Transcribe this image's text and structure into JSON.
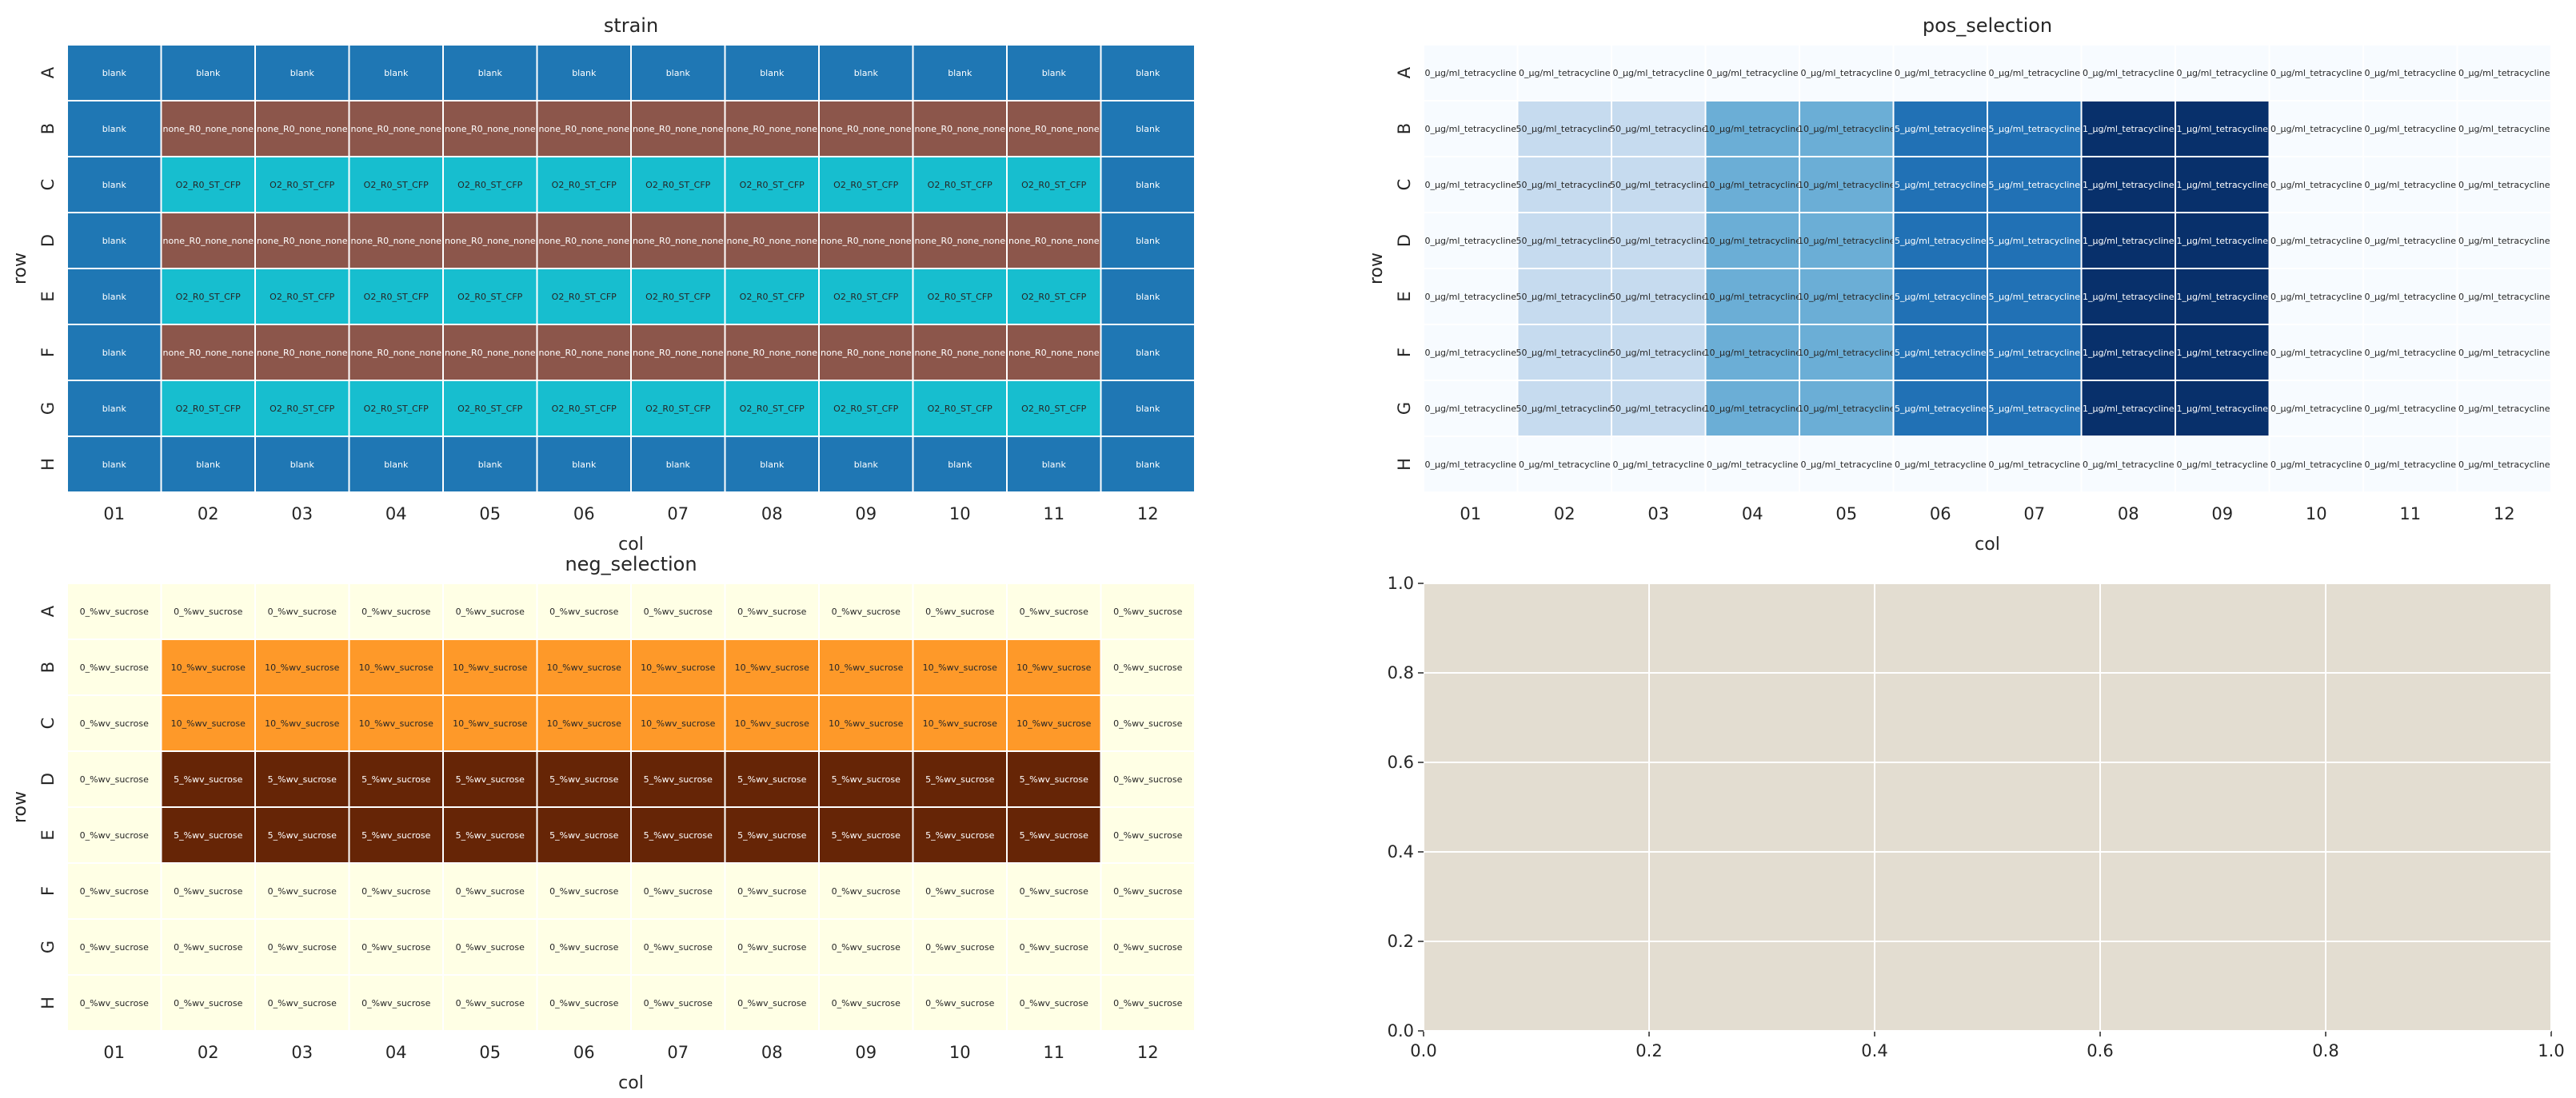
{
  "chart_data": [
    {
      "type": "heatmap",
      "title": "strain",
      "xlabel": "col",
      "ylabel": "row",
      "x_tick_labels": [
        "01",
        "02",
        "03",
        "04",
        "05",
        "06",
        "07",
        "08",
        "09",
        "10",
        "11",
        "12"
      ],
      "y_tick_labels": [
        "A",
        "B",
        "C",
        "D",
        "E",
        "F",
        "G",
        "H"
      ],
      "categories_colors": {
        "blank": "#1f77b4",
        "none_R0_none_none": "#8c564b",
        "O2_R0_ST_CFP": "#17becf"
      },
      "cells": [
        [
          "blank",
          "blank",
          "blank",
          "blank",
          "blank",
          "blank",
          "blank",
          "blank",
          "blank",
          "blank",
          "blank",
          "blank"
        ],
        [
          "blank",
          "none_R0_none_none",
          "none_R0_none_none",
          "none_R0_none_none",
          "none_R0_none_none",
          "none_R0_none_none",
          "none_R0_none_none",
          "none_R0_none_none",
          "none_R0_none_none",
          "none_R0_none_none",
          "none_R0_none_none",
          "blank"
        ],
        [
          "blank",
          "O2_R0_ST_CFP",
          "O2_R0_ST_CFP",
          "O2_R0_ST_CFP",
          "O2_R0_ST_CFP",
          "O2_R0_ST_CFP",
          "O2_R0_ST_CFP",
          "O2_R0_ST_CFP",
          "O2_R0_ST_CFP",
          "O2_R0_ST_CFP",
          "O2_R0_ST_CFP",
          "blank"
        ],
        [
          "blank",
          "none_R0_none_none",
          "none_R0_none_none",
          "none_R0_none_none",
          "none_R0_none_none",
          "none_R0_none_none",
          "none_R0_none_none",
          "none_R0_none_none",
          "none_R0_none_none",
          "none_R0_none_none",
          "none_R0_none_none",
          "blank"
        ],
        [
          "blank",
          "O2_R0_ST_CFP",
          "O2_R0_ST_CFP",
          "O2_R0_ST_CFP",
          "O2_R0_ST_CFP",
          "O2_R0_ST_CFP",
          "O2_R0_ST_CFP",
          "O2_R0_ST_CFP",
          "O2_R0_ST_CFP",
          "O2_R0_ST_CFP",
          "O2_R0_ST_CFP",
          "blank"
        ],
        [
          "blank",
          "none_R0_none_none",
          "none_R0_none_none",
          "none_R0_none_none",
          "none_R0_none_none",
          "none_R0_none_none",
          "none_R0_none_none",
          "none_R0_none_none",
          "none_R0_none_none",
          "none_R0_none_none",
          "none_R0_none_none",
          "blank"
        ],
        [
          "blank",
          "O2_R0_ST_CFP",
          "O2_R0_ST_CFP",
          "O2_R0_ST_CFP",
          "O2_R0_ST_CFP",
          "O2_R0_ST_CFP",
          "O2_R0_ST_CFP",
          "O2_R0_ST_CFP",
          "O2_R0_ST_CFP",
          "O2_R0_ST_CFP",
          "O2_R0_ST_CFP",
          "blank"
        ],
        [
          "blank",
          "blank",
          "blank",
          "blank",
          "blank",
          "blank",
          "blank",
          "blank",
          "blank",
          "blank",
          "blank",
          "blank"
        ]
      ]
    },
    {
      "type": "heatmap",
      "title": "pos_selection",
      "xlabel": "col",
      "ylabel": "row",
      "x_tick_labels": [
        "01",
        "02",
        "03",
        "04",
        "05",
        "06",
        "07",
        "08",
        "09",
        "10",
        "11",
        "12"
      ],
      "y_tick_labels": [
        "A",
        "B",
        "C",
        "D",
        "E",
        "F",
        "G",
        "H"
      ],
      "categories_colors": {
        "0_μg/ml_tetracycline": "#f7fbff",
        "50_μg/ml_tetracycline": "#c6dbef",
        "10_μg/ml_tetracycline": "#6baed6",
        "5_μg/ml_tetracycline": "#2171b5",
        "1_μg/ml_tetracycline": "#08306b"
      },
      "text_colors": {
        "light": "#ffffff",
        "dark": "#262626"
      },
      "cells": [
        [
          "0_μg/ml_tetracycline",
          "0_μg/ml_tetracycline",
          "0_μg/ml_tetracycline",
          "0_μg/ml_tetracycline",
          "0_μg/ml_tetracycline",
          "0_μg/ml_tetracycline",
          "0_μg/ml_tetracycline",
          "0_μg/ml_tetracycline",
          "0_μg/ml_tetracycline",
          "0_μg/ml_tetracycline",
          "0_μg/ml_tetracycline",
          "0_μg/ml_tetracycline"
        ],
        [
          "0_μg/ml_tetracycline",
          "50_μg/ml_tetracycline",
          "50_μg/ml_tetracycline",
          "10_μg/ml_tetracycline",
          "10_μg/ml_tetracycline",
          "5_μg/ml_tetracycline",
          "5_μg/ml_tetracycline",
          "1_μg/ml_tetracycline",
          "1_μg/ml_tetracycline",
          "0_μg/ml_tetracycline",
          "0_μg/ml_tetracycline",
          "0_μg/ml_tetracycline"
        ],
        [
          "0_μg/ml_tetracycline",
          "50_μg/ml_tetracycline",
          "50_μg/ml_tetracycline",
          "10_μg/ml_tetracycline",
          "10_μg/ml_tetracycline",
          "5_μg/ml_tetracycline",
          "5_μg/ml_tetracycline",
          "1_μg/ml_tetracycline",
          "1_μg/ml_tetracycline",
          "0_μg/ml_tetracycline",
          "0_μg/ml_tetracycline",
          "0_μg/ml_tetracycline"
        ],
        [
          "0_μg/ml_tetracycline",
          "50_μg/ml_tetracycline",
          "50_μg/ml_tetracycline",
          "10_μg/ml_tetracycline",
          "10_μg/ml_tetracycline",
          "5_μg/ml_tetracycline",
          "5_μg/ml_tetracycline",
          "1_μg/ml_tetracycline",
          "1_μg/ml_tetracycline",
          "0_μg/ml_tetracycline",
          "0_μg/ml_tetracycline",
          "0_μg/ml_tetracycline"
        ],
        [
          "0_μg/ml_tetracycline",
          "50_μg/ml_tetracycline",
          "50_μg/ml_tetracycline",
          "10_μg/ml_tetracycline",
          "10_μg/ml_tetracycline",
          "5_μg/ml_tetracycline",
          "5_μg/ml_tetracycline",
          "1_μg/ml_tetracycline",
          "1_μg/ml_tetracycline",
          "0_μg/ml_tetracycline",
          "0_μg/ml_tetracycline",
          "0_μg/ml_tetracycline"
        ],
        [
          "0_μg/ml_tetracycline",
          "50_μg/ml_tetracycline",
          "50_μg/ml_tetracycline",
          "10_μg/ml_tetracycline",
          "10_μg/ml_tetracycline",
          "5_μg/ml_tetracycline",
          "5_μg/ml_tetracycline",
          "1_μg/ml_tetracycline",
          "1_μg/ml_tetracycline",
          "0_μg/ml_tetracycline",
          "0_μg/ml_tetracycline",
          "0_μg/ml_tetracycline"
        ],
        [
          "0_μg/ml_tetracycline",
          "50_μg/ml_tetracycline",
          "50_μg/ml_tetracycline",
          "10_μg/ml_tetracycline",
          "10_μg/ml_tetracycline",
          "5_μg/ml_tetracycline",
          "5_μg/ml_tetracycline",
          "1_μg/ml_tetracycline",
          "1_μg/ml_tetracycline",
          "0_μg/ml_tetracycline",
          "0_μg/ml_tetracycline",
          "0_μg/ml_tetracycline"
        ],
        [
          "0_μg/ml_tetracycline",
          "0_μg/ml_tetracycline",
          "0_μg/ml_tetracycline",
          "0_μg/ml_tetracycline",
          "0_μg/ml_tetracycline",
          "0_μg/ml_tetracycline",
          "0_μg/ml_tetracycline",
          "0_μg/ml_tetracycline",
          "0_μg/ml_tetracycline",
          "0_μg/ml_tetracycline",
          "0_μg/ml_tetracycline",
          "0_μg/ml_tetracycline"
        ]
      ]
    },
    {
      "type": "heatmap",
      "title": "neg_selection",
      "xlabel": "col",
      "ylabel": "row",
      "x_tick_labels": [
        "01",
        "02",
        "03",
        "04",
        "05",
        "06",
        "07",
        "08",
        "09",
        "10",
        "11",
        "12"
      ],
      "y_tick_labels": [
        "A",
        "B",
        "C",
        "D",
        "E",
        "F",
        "G",
        "H"
      ],
      "categories_colors": {
        "0_%wv_sucrose": "#ffffe5",
        "10_%wv_sucrose": "#fe9929",
        "5_%wv_sucrose": "#662506"
      },
      "cells": [
        [
          "0_%wv_sucrose",
          "0_%wv_sucrose",
          "0_%wv_sucrose",
          "0_%wv_sucrose",
          "0_%wv_sucrose",
          "0_%wv_sucrose",
          "0_%wv_sucrose",
          "0_%wv_sucrose",
          "0_%wv_sucrose",
          "0_%wv_sucrose",
          "0_%wv_sucrose",
          "0_%wv_sucrose"
        ],
        [
          "0_%wv_sucrose",
          "10_%wv_sucrose",
          "10_%wv_sucrose",
          "10_%wv_sucrose",
          "10_%wv_sucrose",
          "10_%wv_sucrose",
          "10_%wv_sucrose",
          "10_%wv_sucrose",
          "10_%wv_sucrose",
          "10_%wv_sucrose",
          "10_%wv_sucrose",
          "0_%wv_sucrose"
        ],
        [
          "0_%wv_sucrose",
          "10_%wv_sucrose",
          "10_%wv_sucrose",
          "10_%wv_sucrose",
          "10_%wv_sucrose",
          "10_%wv_sucrose",
          "10_%wv_sucrose",
          "10_%wv_sucrose",
          "10_%wv_sucrose",
          "10_%wv_sucrose",
          "10_%wv_sucrose",
          "0_%wv_sucrose"
        ],
        [
          "0_%wv_sucrose",
          "5_%wv_sucrose",
          "5_%wv_sucrose",
          "5_%wv_sucrose",
          "5_%wv_sucrose",
          "5_%wv_sucrose",
          "5_%wv_sucrose",
          "5_%wv_sucrose",
          "5_%wv_sucrose",
          "5_%wv_sucrose",
          "5_%wv_sucrose",
          "0_%wv_sucrose"
        ],
        [
          "0_%wv_sucrose",
          "5_%wv_sucrose",
          "5_%wv_sucrose",
          "5_%wv_sucrose",
          "5_%wv_sucrose",
          "5_%wv_sucrose",
          "5_%wv_sucrose",
          "5_%wv_sucrose",
          "5_%wv_sucrose",
          "5_%wv_sucrose",
          "5_%wv_sucrose",
          "0_%wv_sucrose"
        ],
        [
          "0_%wv_sucrose",
          "0_%wv_sucrose",
          "0_%wv_sucrose",
          "0_%wv_sucrose",
          "0_%wv_sucrose",
          "0_%wv_sucrose",
          "0_%wv_sucrose",
          "0_%wv_sucrose",
          "0_%wv_sucrose",
          "0_%wv_sucrose",
          "0_%wv_sucrose",
          "0_%wv_sucrose"
        ],
        [
          "0_%wv_sucrose",
          "0_%wv_sucrose",
          "0_%wv_sucrose",
          "0_%wv_sucrose",
          "0_%wv_sucrose",
          "0_%wv_sucrose",
          "0_%wv_sucrose",
          "0_%wv_sucrose",
          "0_%wv_sucrose",
          "0_%wv_sucrose",
          "0_%wv_sucrose",
          "0_%wv_sucrose"
        ],
        [
          "0_%wv_sucrose",
          "0_%wv_sucrose",
          "0_%wv_sucrose",
          "0_%wv_sucrose",
          "0_%wv_sucrose",
          "0_%wv_sucrose",
          "0_%wv_sucrose",
          "0_%wv_sucrose",
          "0_%wv_sucrose",
          "0_%wv_sucrose",
          "0_%wv_sucrose",
          "0_%wv_sucrose"
        ]
      ]
    },
    {
      "type": "scatter",
      "title": "",
      "xlabel": "",
      "ylabel": "",
      "xlim": [
        0.0,
        1.0
      ],
      "ylim": [
        0.0,
        1.0
      ],
      "x_tick_labels": [
        "0.0",
        "0.2",
        "0.4",
        "0.6",
        "0.8",
        "1.0"
      ],
      "y_tick_labels": [
        "0.0",
        "0.2",
        "0.4",
        "0.6",
        "0.8",
        "1.0"
      ],
      "grid": true,
      "background_color": "#e3ddd1",
      "series": []
    }
  ]
}
